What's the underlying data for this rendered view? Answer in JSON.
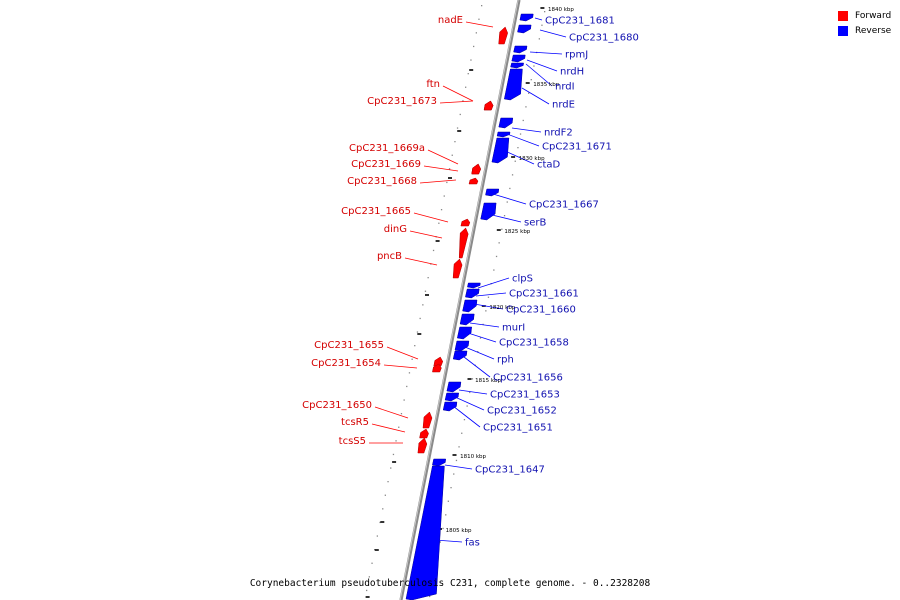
{
  "legend": {
    "forward_label": "Forward",
    "reverse_label": "Reverse"
  },
  "colors": {
    "forward": "#ff0000",
    "reverse": "#0000ff",
    "forward_text": "#d40000",
    "reverse_text": "#1010b0",
    "backbone": "#888888"
  },
  "footer": {
    "caption": "Corynebacterium pseudotuberculosis C231, complete genome. - 0..2328208"
  },
  "ticks": [
    "1840 kbp",
    "1835 kbp",
    "1830 kbp",
    "1825 kbp",
    "1820 kbp",
    "1815 kbp",
    "1810 kbp",
    "1805 kbp"
  ],
  "forward_genes": [
    "nadE",
    "ftn",
    "CpC231_1673",
    "CpC231_1669a",
    "CpC231_1669",
    "CpC231_1668",
    "CpC231_1665",
    "dinG",
    "pncB",
    "CpC231_1655",
    "CpC231_1654",
    "CpC231_1650",
    "tcsR5",
    "tcsS5"
  ],
  "reverse_genes": [
    "CpC231_1681",
    "CpC231_1680",
    "rpmJ",
    "nrdH",
    "nrdI",
    "nrdE",
    "nrdF2",
    "CpC231_1671",
    "ctaD",
    "CpC231_1667",
    "serB",
    "clpS",
    "CpC231_1661",
    "CpC231_1660",
    "murI",
    "CpC231_1658",
    "rph",
    "CpC231_1656",
    "CpC231_1653",
    "CpC231_1652",
    "CpC231_1651",
    "CpC231_1647",
    "fas"
  ]
}
